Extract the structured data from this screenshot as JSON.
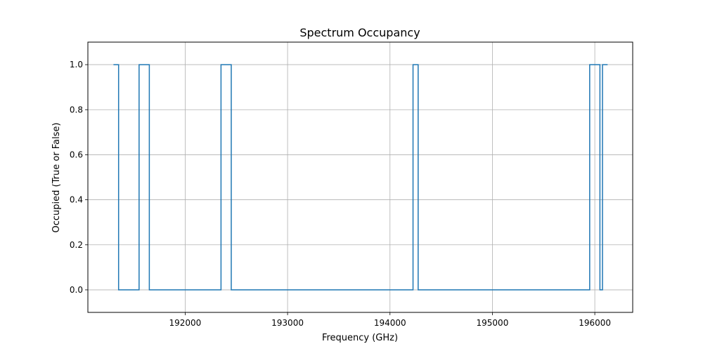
{
  "chart_data": {
    "type": "line",
    "step": true,
    "title": "Spectrum Occupancy",
    "xlabel": "Frequency (GHz)",
    "ylabel": "Occupied (True or False)",
    "xlim": [
      191050,
      196370
    ],
    "ylim": [
      -0.1,
      1.1
    ],
    "x_ticks": [
      192000,
      193000,
      194000,
      195000,
      196000
    ],
    "x_tick_labels": [
      "192000",
      "193000",
      "194000",
      "195000",
      "196000"
    ],
    "y_ticks": [
      0.0,
      0.2,
      0.4,
      0.6,
      0.8,
      1.0
    ],
    "y_tick_labels": [
      "0.0",
      "0.2",
      "0.4",
      "0.6",
      "0.8",
      "1.0"
    ],
    "grid": true,
    "line_color": "#1f77b4",
    "grid_color": "#b0b0b0",
    "series": [
      {
        "x": [
          191300,
          191350,
          191350,
          191550,
          191550,
          191650,
          191650,
          192350,
          192350,
          192450,
          192450,
          194225,
          194225,
          194275,
          194275,
          195950,
          195950,
          196050,
          196050,
          196075,
          196075,
          196125
        ],
        "y": [
          1,
          1,
          0,
          0,
          1,
          1,
          0,
          0,
          1,
          1,
          0,
          0,
          1,
          1,
          0,
          0,
          1,
          1,
          0,
          0,
          1,
          1
        ]
      }
    ]
  }
}
